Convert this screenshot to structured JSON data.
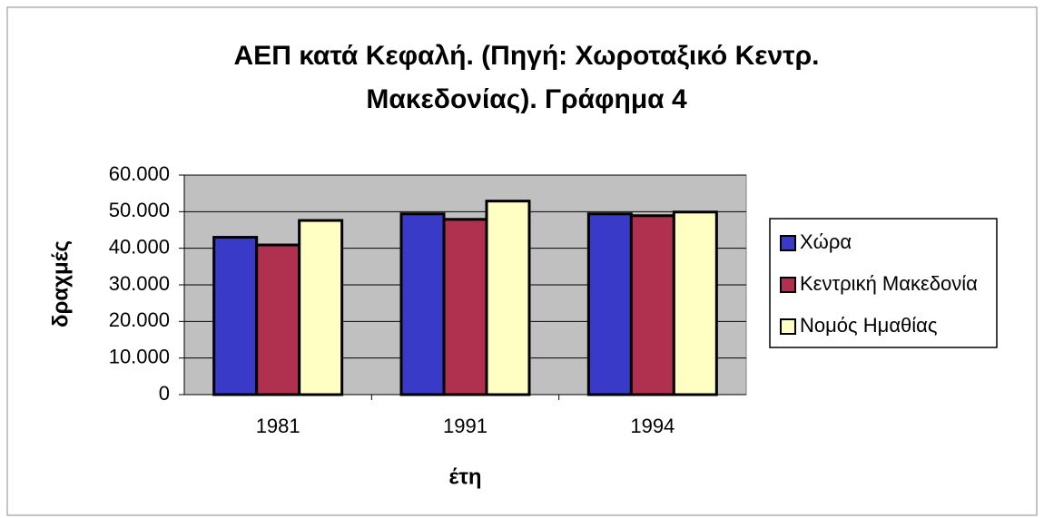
{
  "chart_data": {
    "type": "bar",
    "title": "ΑΕΠ κατά Κεφαλή. (Πηγή: Χωροταξικό Κεντρ. Μακεδονίας). Γράφημα 4",
    "x_label": "έτη",
    "y_label": "δραχμές",
    "categories": [
      "1981",
      "1991",
      "1994"
    ],
    "series": [
      {
        "name": "Χώρα",
        "color": "#3a3ac8",
        "values": [
          43000,
          49400,
          49400
        ]
      },
      {
        "name": "Κεντρική Μακεδονία",
        "color": "#b03050",
        "values": [
          40900,
          47900,
          48900
        ]
      },
      {
        "name": "Νομός Ημαθίας",
        "color": "#ffffc4",
        "values": [
          47600,
          52900,
          49900
        ]
      }
    ],
    "ylim": [
      0,
      60000
    ],
    "yticks": [
      0,
      {
        "value": 10000,
        "label": "10.000"
      },
      {
        "value": 20000,
        "label": "20.000"
      },
      {
        "value": 30000,
        "label": "30.000"
      },
      {
        "value": 40000,
        "label": "40.000"
      },
      {
        "value": 50000,
        "label": "50.000"
      },
      {
        "value": 60000,
        "label": "60.000"
      }
    ],
    "grid": true,
    "legend": "right",
    "plot_background": "#c0c0c0"
  }
}
